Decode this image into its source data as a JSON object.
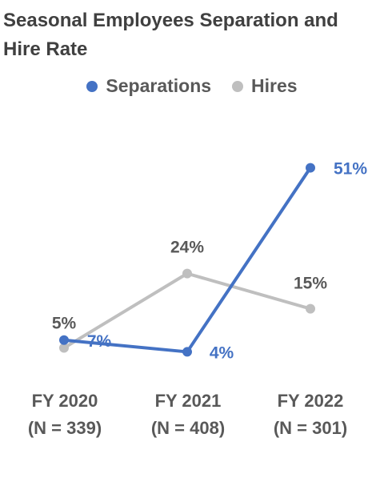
{
  "chart_data": {
    "type": "line",
    "title": "Seasonal Employees Separation and Hire Rate",
    "categories": [
      {
        "label": "FY 2020",
        "sub": "(N = 339)"
      },
      {
        "label": "FY 2021",
        "sub": "(N = 408)"
      },
      {
        "label": "FY 2022",
        "sub": "(N = 301)"
      }
    ],
    "series": [
      {
        "name": "Separations",
        "values": [
          7,
          4,
          51
        ],
        "labels": [
          "7%",
          "4%",
          "51%"
        ],
        "color": "#4472C4"
      },
      {
        "name": "Hires",
        "values": [
          5,
          24,
          15
        ],
        "labels": [
          "5%",
          "24%",
          "15%"
        ],
        "color": "#BFBFBF"
      }
    ],
    "ylim": [
      0,
      55
    ],
    "legend": "top",
    "grid": false,
    "colors": {
      "label_hires": "#595959",
      "label_separations": "#4472C4"
    }
  }
}
